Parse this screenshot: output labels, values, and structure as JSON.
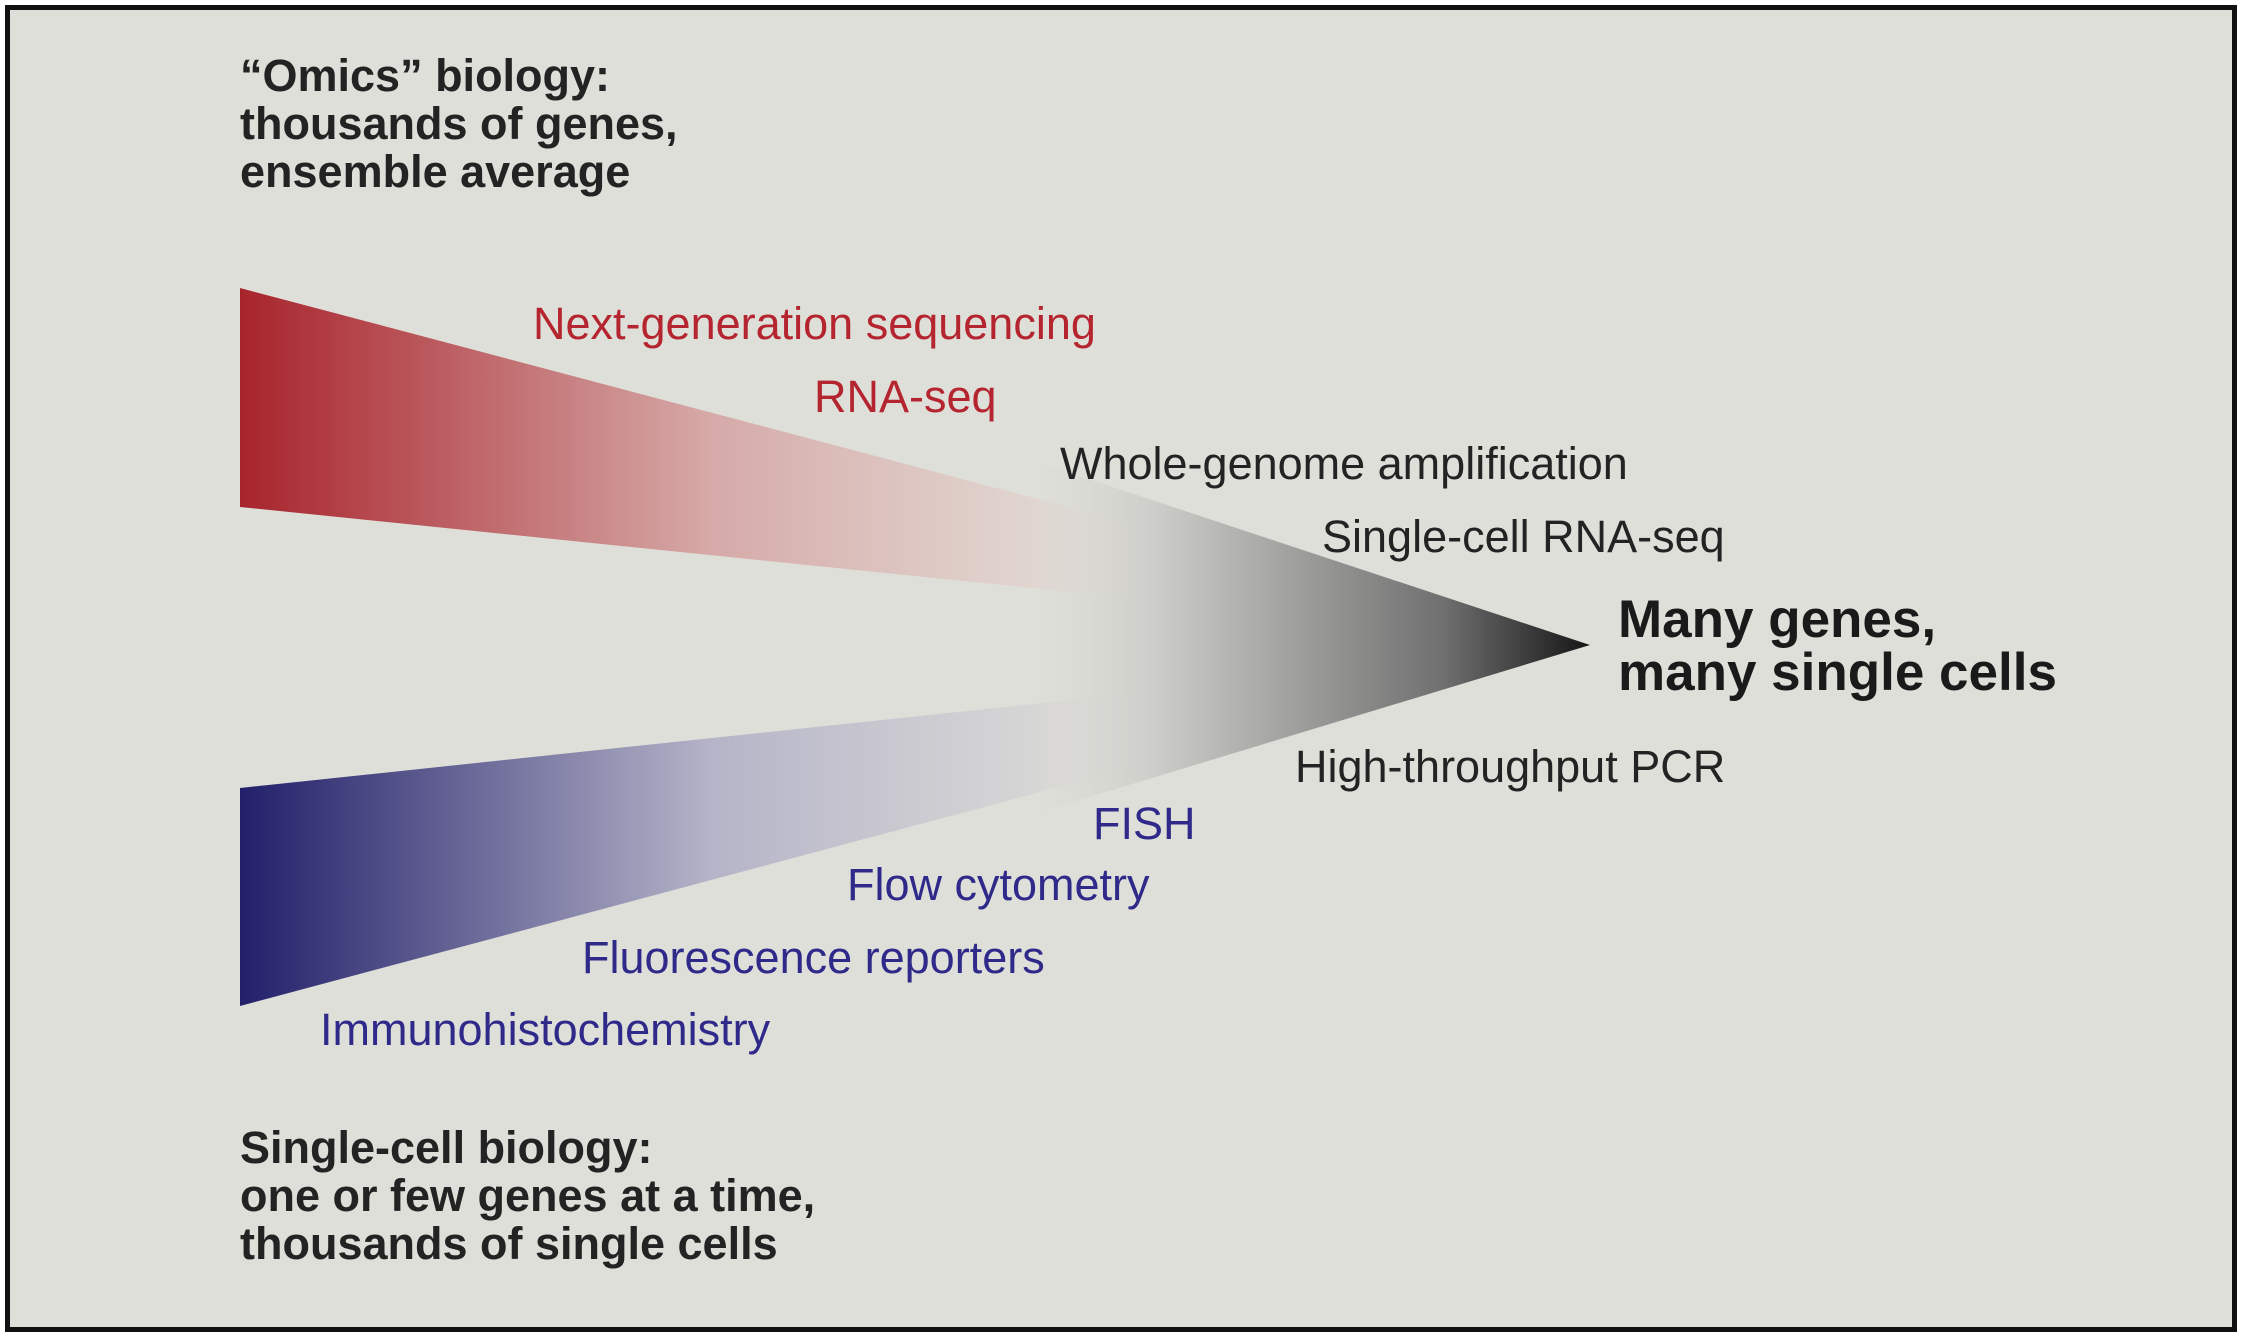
{
  "omics_heading": {
    "line1": "“Omics” biology:",
    "line2": "thousands of genes,",
    "line3": "ensemble average"
  },
  "singlecell_heading": {
    "line1": "Single-cell biology:",
    "line2": "one or few genes at a time,",
    "line3": "thousands of single cells"
  },
  "target": {
    "line1": "Many genes,",
    "line2": "many single cells"
  },
  "omics_methods": [
    "Next-generation sequencing",
    "RNA-seq"
  ],
  "singlecell_methods": [
    "FISH",
    "Flow cytometry",
    "Fluorescence reporters",
    "Immunohistochemistry"
  ],
  "convergent_methods": [
    "Whole-genome amplification",
    "Single-cell RNA-seq",
    "High-throughput PCR"
  ],
  "colors": {
    "background": "#dfdfd9",
    "omics_red": "#a8242c",
    "singlecell_blue": "#22206a",
    "convergent_black": "#1a1a1a",
    "red_text": "#b5252f",
    "blue_text": "#2f2a8a",
    "dark_text": "#232323"
  }
}
